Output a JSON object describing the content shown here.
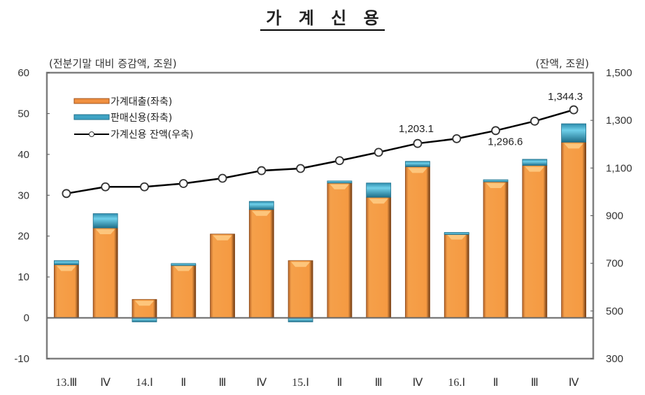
{
  "title": "가 계 신 용",
  "axes": {
    "left_unit": "(전분기말 대비 증감액, 조원)",
    "right_unit": "(잔액, 조원)",
    "left_ticks": [
      "60",
      "50",
      "40",
      "30",
      "20",
      "10",
      "0",
      "-10"
    ],
    "right_ticks": [
      "1,500",
      "1,300",
      "1,100",
      "900",
      "700",
      "500",
      "300"
    ]
  },
  "legend": {
    "loans": "가계대출(좌축)",
    "sales_credit": "판매신용(좌축)",
    "balance": "가계신용 잔액(우축)"
  },
  "colors": {
    "loans": "#F5A04A",
    "loans_dark": "#8A4A1A",
    "sales_credit": "#3FA3C4",
    "sales_credit_dark": "#1F6F8A",
    "line": "#000000",
    "axis": "#7F7F7F"
  },
  "chart_data": {
    "type": "bar",
    "title": "가계신용",
    "categories": [
      "13.Ⅲ",
      "Ⅳ",
      "14.Ⅰ",
      "Ⅱ",
      "Ⅲ",
      "Ⅳ",
      "15.Ⅰ",
      "Ⅱ",
      "Ⅲ",
      "Ⅳ",
      "16.Ⅰ",
      "Ⅱ",
      "Ⅲ",
      "Ⅳ"
    ],
    "series": [
      {
        "name": "가계대출(좌축)",
        "type": "bar",
        "axis": "left",
        "stacked": true,
        "values": [
          13.0,
          22.0,
          4.5,
          13.0,
          20.5,
          26.5,
          14.0,
          33.0,
          29.5,
          37.0,
          20.7,
          33.3,
          37.3,
          43.0
        ]
      },
      {
        "name": "판매신용(좌축)",
        "type": "bar",
        "axis": "left",
        "stacked": true,
        "values": [
          1.0,
          3.5,
          -1.0,
          0.3,
          0.0,
          2.0,
          -1.0,
          0.5,
          3.5,
          1.3,
          0.2,
          0.5,
          1.5,
          4.5
        ]
      },
      {
        "name": "가계신용 잔액(우축)",
        "type": "line",
        "axis": "right",
        "values": [
          993,
          1021,
          1021,
          1035,
          1057,
          1089,
          1098,
          1131,
          1166,
          1203.1,
          1223,
          1257,
          1296.6,
          1344.3
        ]
      }
    ],
    "annotations": [
      {
        "category": "Ⅳ (15)",
        "text": "1,203.1"
      },
      {
        "category": "Ⅲ (16)",
        "text": "1,296.6"
      },
      {
        "category": "Ⅳ (16)",
        "text": "1,344.3"
      }
    ],
    "ylabel": "(전분기말 대비 증감액, 조원)",
    "y2label": "(잔액, 조원)",
    "ylim": [
      -10,
      60
    ],
    "y2lim": [
      300,
      1500
    ],
    "grid": false,
    "legend_position": "upper-left inside"
  }
}
